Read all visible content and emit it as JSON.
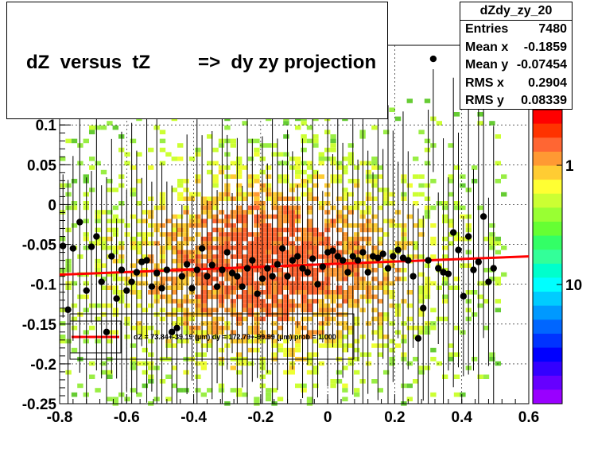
{
  "title": "dZ  versus  tZ         =>  dy zy projection",
  "stats": {
    "name": "dZdy_zy_20",
    "rows": [
      {
        "label": "Entries",
        "value": "7480"
      },
      {
        "label": "Mean x",
        "value": "-0.1859"
      },
      {
        "label": "Mean y",
        "value": "-0.07454"
      },
      {
        "label": "RMS x",
        "value": "0.2904"
      },
      {
        "label": "RMS y",
        "value": "0.08339"
      }
    ]
  },
  "colors": {
    "fit_line": "#ff0000",
    "markers": "#000000"
  },
  "chart_data": {
    "type": "scatter",
    "xlim": [
      -0.8,
      0.6
    ],
    "ylim": [
      -0.25,
      0.2
    ],
    "x_ticks": [
      "-0.8",
      "-0.6",
      "-0.4",
      "-0.2",
      "0",
      "0.2",
      "0.4",
      "0.6"
    ],
    "y_ticks": [
      "-0.25",
      "-0.2",
      "-0.15",
      "-0.1",
      "-0.05",
      "0",
      "0.05",
      "0.1"
    ],
    "grid": true,
    "palette_labels": [
      "1",
      "10"
    ],
    "fit": {
      "label": "dZ = 73.84+-39.19 (µm) dy = 172.79+-99.99 (µm) prob = 1.000",
      "x": [
        -0.8,
        0.6
      ],
      "y": [
        -0.088,
        -0.065
      ]
    },
    "profile_points": [
      {
        "x": -0.79,
        "y": -0.052
      },
      {
        "x": -0.775,
        "y": -0.132
      },
      {
        "x": -0.76,
        "y": -0.055
      },
      {
        "x": -0.74,
        "y": -0.022
      },
      {
        "x": -0.72,
        "y": -0.108
      },
      {
        "x": -0.705,
        "y": -0.053
      },
      {
        "x": -0.69,
        "y": -0.04
      },
      {
        "x": -0.675,
        "y": -0.097
      },
      {
        "x": -0.66,
        "y": -0.16
      },
      {
        "x": -0.645,
        "y": -0.065
      },
      {
        "x": -0.63,
        "y": -0.118
      },
      {
        "x": -0.615,
        "y": -0.082
      },
      {
        "x": -0.6,
        "y": -0.108
      },
      {
        "x": -0.585,
        "y": -0.097
      },
      {
        "x": -0.57,
        "y": -0.085
      },
      {
        "x": -0.555,
        "y": -0.072
      },
      {
        "x": -0.54,
        "y": -0.07
      },
      {
        "x": -0.525,
        "y": -0.103
      },
      {
        "x": -0.51,
        "y": -0.086
      },
      {
        "x": -0.495,
        "y": -0.105
      },
      {
        "x": -0.48,
        "y": -0.082
      },
      {
        "x": -0.465,
        "y": -0.16
      },
      {
        "x": -0.45,
        "y": -0.155
      },
      {
        "x": -0.435,
        "y": -0.09
      },
      {
        "x": -0.42,
        "y": -0.075
      },
      {
        "x": -0.405,
        "y": -0.105
      },
      {
        "x": -0.39,
        "y": -0.082
      },
      {
        "x": -0.375,
        "y": -0.055
      },
      {
        "x": -0.36,
        "y": -0.09
      },
      {
        "x": -0.345,
        "y": -0.076
      },
      {
        "x": -0.33,
        "y": -0.103
      },
      {
        "x": -0.315,
        "y": -0.082
      },
      {
        "x": -0.3,
        "y": -0.06
      },
      {
        "x": -0.285,
        "y": -0.086
      },
      {
        "x": -0.27,
        "y": -0.09
      },
      {
        "x": -0.255,
        "y": -0.103
      },
      {
        "x": -0.24,
        "y": -0.08
      },
      {
        "x": -0.225,
        "y": -0.07
      },
      {
        "x": -0.21,
        "y": -0.112
      },
      {
        "x": -0.195,
        "y": -0.093
      },
      {
        "x": -0.18,
        "y": -0.08
      },
      {
        "x": -0.165,
        "y": -0.09
      },
      {
        "x": -0.15,
        "y": -0.075
      },
      {
        "x": -0.135,
        "y": -0.055
      },
      {
        "x": -0.12,
        "y": -0.09
      },
      {
        "x": -0.105,
        "y": -0.07
      },
      {
        "x": -0.09,
        "y": -0.065
      },
      {
        "x": -0.075,
        "y": -0.08
      },
      {
        "x": -0.06,
        "y": -0.085
      },
      {
        "x": -0.045,
        "y": -0.068
      },
      {
        "x": -0.03,
        "y": -0.1
      },
      {
        "x": -0.015,
        "y": -0.078
      },
      {
        "x": 0.0,
        "y": -0.06
      },
      {
        "x": 0.015,
        "y": -0.058
      },
      {
        "x": 0.03,
        "y": -0.065
      },
      {
        "x": 0.045,
        "y": -0.07
      },
      {
        "x": 0.06,
        "y": -0.085
      },
      {
        "x": 0.075,
        "y": -0.065
      },
      {
        "x": 0.09,
        "y": -0.07
      },
      {
        "x": 0.105,
        "y": -0.06
      },
      {
        "x": 0.12,
        "y": -0.085
      },
      {
        "x": 0.135,
        "y": -0.065
      },
      {
        "x": 0.15,
        "y": -0.067
      },
      {
        "x": 0.165,
        "y": -0.062
      },
      {
        "x": 0.18,
        "y": -0.08
      },
      {
        "x": 0.195,
        "y": -0.065
      },
      {
        "x": 0.21,
        "y": -0.057
      },
      {
        "x": 0.225,
        "y": -0.067
      },
      {
        "x": 0.24,
        "y": -0.07
      },
      {
        "x": 0.255,
        "y": -0.09
      },
      {
        "x": 0.27,
        "y": -0.168
      },
      {
        "x": 0.285,
        "y": -0.13
      },
      {
        "x": 0.3,
        "y": -0.07
      },
      {
        "x": 0.315,
        "y": 0.183
      },
      {
        "x": 0.33,
        "y": -0.08
      },
      {
        "x": 0.345,
        "y": -0.085
      },
      {
        "x": 0.36,
        "y": -0.087
      },
      {
        "x": 0.375,
        "y": -0.035
      },
      {
        "x": 0.39,
        "y": -0.057
      },
      {
        "x": 0.405,
        "y": -0.115
      },
      {
        "x": 0.42,
        "y": -0.04
      },
      {
        "x": 0.435,
        "y": -0.082
      },
      {
        "x": 0.45,
        "y": -0.072
      },
      {
        "x": 0.465,
        "y": -0.015
      },
      {
        "x": 0.48,
        "y": -0.097
      },
      {
        "x": 0.495,
        "y": -0.08
      }
    ]
  }
}
